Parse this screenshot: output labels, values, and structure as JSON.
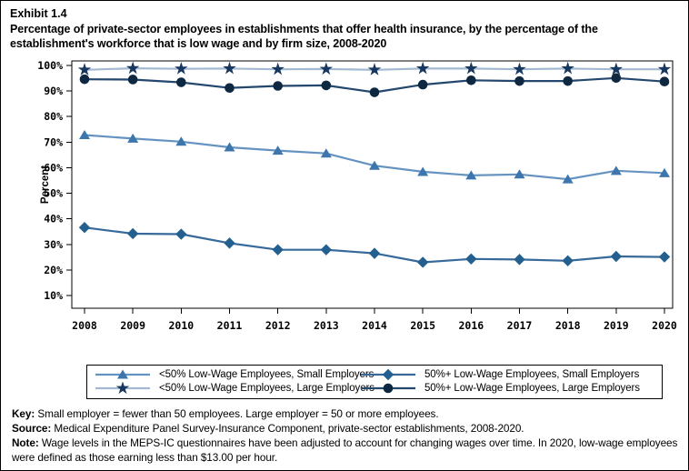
{
  "header": {
    "exhibit_label": "Exhibit 1.4",
    "title": "Percentage of private-sector employees in establishments that offer health insurance, by the percentage of the establishment's workforce that is low wage and by firm size,  2008-2020"
  },
  "chart_data": {
    "type": "line",
    "x": [
      "2008",
      "2009",
      "2010",
      "2011",
      "2012",
      "2013",
      "2014",
      "2015",
      "2016",
      "2017",
      "2018",
      "2019",
      "2020"
    ],
    "xlabel": "",
    "ylabel": "Percent",
    "yticks": [
      "10%",
      "20%",
      "30%",
      "40%",
      "50%",
      "60%",
      "70%",
      "80%",
      "90%",
      "100%"
    ],
    "ylim": [
      5,
      102
    ],
    "grid": false,
    "legend_position": "bottom",
    "series": [
      {
        "name": "<50% Low-Wage Employees, Small Employers",
        "marker": "triangle",
        "line_color": "#6593C1",
        "marker_color": "#3C76AC",
        "values": [
          72.8,
          71.4,
          70.2,
          68.0,
          66.7,
          65.6,
          60.8,
          58.4,
          57.0,
          57.4,
          55.5,
          58.8,
          57.9
        ]
      },
      {
        "name": "<50% Low-Wage Employees, Large Employers",
        "marker": "star",
        "line_color": "#A3B8D1",
        "marker_color": "#17375E",
        "values": [
          98.3,
          98.9,
          98.7,
          98.8,
          98.5,
          98.6,
          98.3,
          98.8,
          98.8,
          98.5,
          98.8,
          98.5,
          98.5
        ]
      },
      {
        "name": "50%+ Low-Wage Employees, Small Employers",
        "marker": "diamond",
        "line_color": "#37699A",
        "marker_color": "#24608F",
        "values": [
          36.6,
          34.2,
          34.0,
          30.5,
          27.9,
          27.9,
          26.5,
          23.0,
          24.3,
          24.1,
          23.6,
          25.3,
          25.1
        ]
      },
      {
        "name": "50%+ Low-Wage Employees, Large Employers",
        "marker": "circle",
        "line_color": "#24476E",
        "marker_color": "#0E2841",
        "values": [
          94.6,
          94.5,
          93.4,
          91.2,
          92.0,
          92.2,
          89.5,
          92.5,
          94.2,
          93.9,
          93.9,
          95.1,
          93.7
        ]
      }
    ]
  },
  "legend": {
    "order": [
      0,
      2,
      1,
      3
    ]
  },
  "notes": {
    "key_label": "Key:",
    "key_text": " Small employer = fewer than 50 employees. Large employer = 50 or more employees.",
    "source_label": "Source:",
    "source_text": " Medical Expenditure Panel Survey-Insurance Component, private-sector establishments, 2008-2020.",
    "note_label": "Note:",
    "note_text": " Wage levels in the MEPS-IC questionnaires have been adjusted to account for changing wages over time. In 2020, low-wage employees were defined as those earning less than $13.00 per hour."
  }
}
